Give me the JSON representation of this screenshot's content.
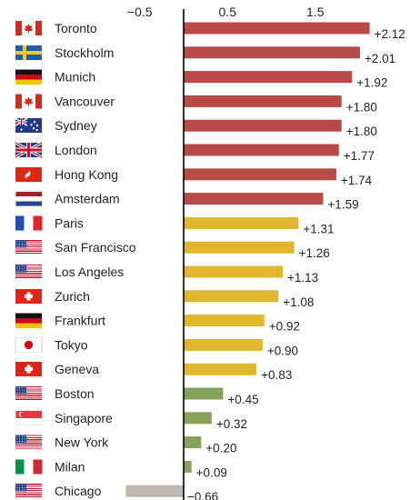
{
  "chart_data": {
    "type": "bar",
    "orientation": "horizontal",
    "xlim": [
      -0.8,
      2.2
    ],
    "axis_ticks": [
      {
        "value": -0.5,
        "label": "−0.5"
      },
      {
        "value": 0.5,
        "label": "0.5"
      },
      {
        "value": 1.5,
        "label": "1.5"
      }
    ],
    "grid": false,
    "rows": [
      {
        "city": "Toronto",
        "flag": "canada-flag-icon",
        "value": 2.12,
        "label": "+2.12"
      },
      {
        "city": "Stockholm",
        "flag": "sweden-flag-icon",
        "value": 2.01,
        "label": "+2.01"
      },
      {
        "city": "Munich",
        "flag": "germany-flag-icon",
        "value": 1.92,
        "label": "+1.92"
      },
      {
        "city": "Vancouver",
        "flag": "canada-flag-icon",
        "value": 1.8,
        "label": "+1.80"
      },
      {
        "city": "Sydney",
        "flag": "australia-flag-icon",
        "value": 1.8,
        "label": "+1.80"
      },
      {
        "city": "London",
        "flag": "uk-flag-icon",
        "value": 1.77,
        "label": "+1.77"
      },
      {
        "city": "Hong Kong",
        "flag": "hong-kong-flag-icon",
        "value": 1.74,
        "label": "+1.74"
      },
      {
        "city": "Amsterdam",
        "flag": "netherlands-flag-icon",
        "value": 1.59,
        "label": "+1.59"
      },
      {
        "city": "Paris",
        "flag": "france-flag-icon",
        "value": 1.31,
        "label": "+1.31"
      },
      {
        "city": "San Francisco",
        "flag": "usa-flag-icon",
        "value": 1.26,
        "label": "+1.26"
      },
      {
        "city": "Los Angeles",
        "flag": "usa-flag-icon",
        "value": 1.13,
        "label": "+1.13"
      },
      {
        "city": "Zurich",
        "flag": "switzerland-flag-icon",
        "value": 1.08,
        "label": "+1.08"
      },
      {
        "city": "Frankfurt",
        "flag": "germany-flag-icon",
        "value": 0.92,
        "label": "+0.92"
      },
      {
        "city": "Tokyo",
        "flag": "japan-flag-icon",
        "value": 0.9,
        "label": "+0.90"
      },
      {
        "city": "Geneva",
        "flag": "switzerland-flag-icon",
        "value": 0.83,
        "label": "+0.83"
      },
      {
        "city": "Boston",
        "flag": "usa-flag-icon",
        "value": 0.45,
        "label": "+0.45"
      },
      {
        "city": "Singapore",
        "flag": "singapore-flag-icon",
        "value": 0.32,
        "label": "+0.32"
      },
      {
        "city": "New York",
        "flag": "usa-flag-icon",
        "value": 0.2,
        "label": "+0.20"
      },
      {
        "city": "Milan",
        "flag": "italy-flag-icon",
        "value": 0.09,
        "label": "+0.09"
      },
      {
        "city": "Chicago",
        "flag": "usa-flag-icon",
        "value": -0.66,
        "label": "−0.66"
      }
    ],
    "color_tiers": [
      {
        "min": 1.5,
        "color": "#b84a48"
      },
      {
        "min": 0.75,
        "color": "#dfb62e"
      },
      {
        "min": 0,
        "color": "#87a25a"
      },
      {
        "min": -99,
        "color": "#bfb8b0"
      }
    ],
    "colors": {
      "axis": "#000000",
      "text": "#222222"
    }
  }
}
